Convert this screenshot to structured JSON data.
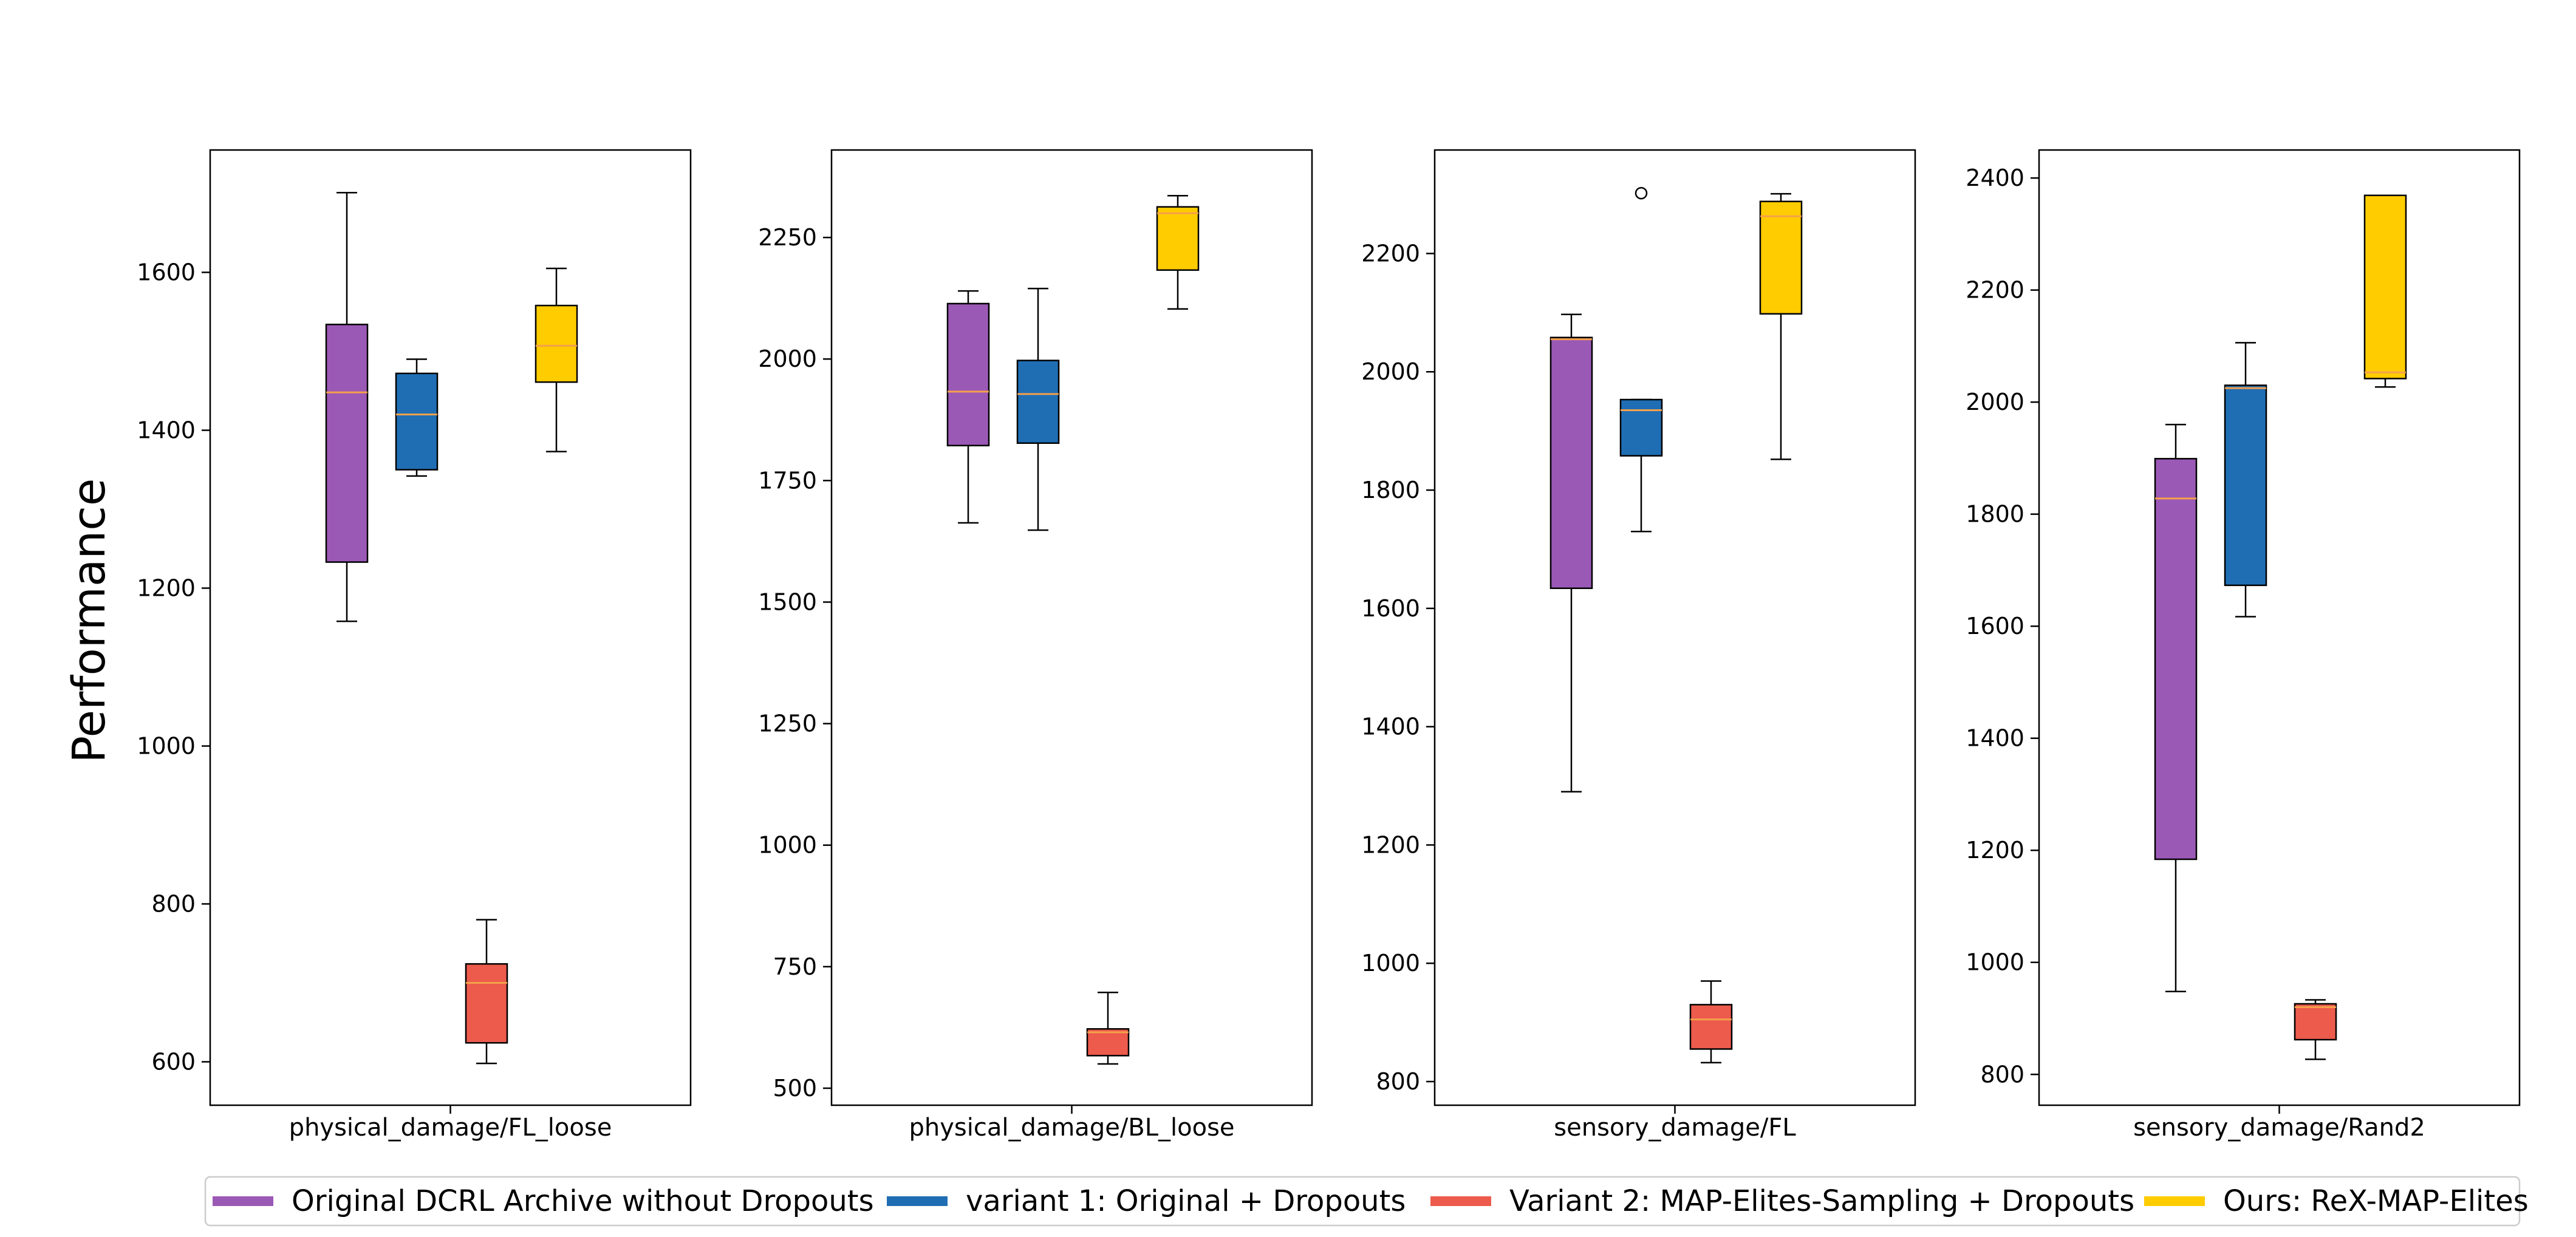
{
  "figure": {
    "y_axis_label": "Performance"
  },
  "colors": {
    "Original DCRL Archive without Dropouts": "#9b59b6",
    "variant 1: Original + Dropouts": "#1f6eb4",
    "Variant 2: MAP-Elites-Sampling + Dropouts": "#ec5b4c",
    "Ours: ReX-MAP-Elites": "#ffcc00",
    "median": "#f5a04a"
  },
  "legend": {
    "placement": "bottom-center",
    "items": [
      "Original DCRL Archive without Dropouts",
      "variant 1: Original + Dropouts",
      "Variant 2: MAP-Elites-Sampling + Dropouts",
      "Ours: ReX-MAP-Elites"
    ]
  },
  "chart_data": [
    {
      "type": "box",
      "category": "physical_damage/FL_loose",
      "ylabel": "Performance",
      "ylim": [
        545,
        1755
      ],
      "yticks": [
        600,
        800,
        1000,
        1200,
        1400,
        1600
      ],
      "series": [
        {
          "name": "Original DCRL Archive without Dropouts",
          "whislo": 1158,
          "q1": 1233,
          "med": 1448,
          "q3": 1534,
          "whishi": 1701,
          "fliers": []
        },
        {
          "name": "variant 1: Original + Dropouts",
          "whislo": 1342,
          "q1": 1350,
          "med": 1420,
          "q3": 1472,
          "whishi": 1490,
          "fliers": []
        },
        {
          "name": "Variant 2: MAP-Elites-Sampling + Dropouts",
          "whislo": 598,
          "q1": 624,
          "med": 700,
          "q3": 724,
          "whishi": 780,
          "fliers": []
        },
        {
          "name": "Ours: ReX-MAP-Elites",
          "whislo": 1373,
          "q1": 1461,
          "med": 1507,
          "q3": 1558,
          "whishi": 1605,
          "fliers": []
        }
      ]
    },
    {
      "type": "box",
      "category": "physical_damage/BL_loose",
      "ylabel": "",
      "ylim": [
        465,
        2430
      ],
      "yticks": [
        500,
        750,
        1000,
        1250,
        1500,
        1750,
        2000,
        2250
      ],
      "series": [
        {
          "name": "Original DCRL Archive without Dropouts",
          "whislo": 1663,
          "q1": 1822,
          "med": 1933,
          "q3": 2114,
          "whishi": 2140,
          "fliers": []
        },
        {
          "name": "variant 1: Original + Dropouts",
          "whislo": 1648,
          "q1": 1827,
          "med": 1928,
          "q3": 1997,
          "whishi": 2145,
          "fliers": []
        },
        {
          "name": "Variant 2: MAP-Elites-Sampling + Dropouts",
          "whislo": 550,
          "q1": 567,
          "med": 615,
          "q3": 622,
          "whishi": 697,
          "fliers": []
        },
        {
          "name": "Ours: ReX-MAP-Elites",
          "whislo": 2103,
          "q1": 2183,
          "med": 2300,
          "q3": 2313,
          "whishi": 2336,
          "fliers": []
        }
      ]
    },
    {
      "type": "box",
      "category": "sensory_damage/FL",
      "ylabel": "",
      "ylim": [
        760,
        2375
      ],
      "yticks": [
        800,
        1000,
        1200,
        1400,
        1600,
        1800,
        2000,
        2200
      ],
      "series": [
        {
          "name": "Original DCRL Archive without Dropouts",
          "whislo": 1290,
          "q1": 1634,
          "med": 2055,
          "q3": 2058,
          "whishi": 2097,
          "fliers": []
        },
        {
          "name": "variant 1: Original + Dropouts",
          "whislo": 1730,
          "q1": 1858,
          "med": 1935,
          "q3": 1953,
          "whishi": 1953,
          "fliers": [
            2302
          ]
        },
        {
          "name": "Variant 2: MAP-Elites-Sampling + Dropouts",
          "whislo": 832,
          "q1": 855,
          "med": 905,
          "q3": 930,
          "whishi": 970,
          "fliers": []
        },
        {
          "name": "Ours: ReX-MAP-Elites",
          "whislo": 1852,
          "q1": 2098,
          "med": 2263,
          "q3": 2288,
          "whishi": 2301,
          "fliers": []
        }
      ]
    },
    {
      "type": "box",
      "category": "sensory_damage/Rand2",
      "ylabel": "",
      "ylim": [
        745,
        2450
      ],
      "yticks": [
        800,
        1000,
        1200,
        1400,
        1600,
        1800,
        2000,
        2200,
        2400
      ],
      "series": [
        {
          "name": "Original DCRL Archive without Dropouts",
          "whislo": 948,
          "q1": 1184,
          "med": 1828,
          "q3": 1899,
          "whishi": 1960,
          "fliers": []
        },
        {
          "name": "variant 1: Original + Dropouts",
          "whislo": 1617,
          "q1": 1673,
          "med": 2025,
          "q3": 2030,
          "whishi": 2106,
          "fliers": []
        },
        {
          "name": "Variant 2: MAP-Elites-Sampling + Dropouts",
          "whislo": 827,
          "q1": 862,
          "med": 920,
          "q3": 926,
          "whishi": 933,
          "fliers": []
        },
        {
          "name": "Ours: ReX-MAP-Elites",
          "whislo": 2027,
          "q1": 2042,
          "med": 2053,
          "q3": 2369,
          "whishi": 2369,
          "fliers": []
        }
      ]
    }
  ]
}
